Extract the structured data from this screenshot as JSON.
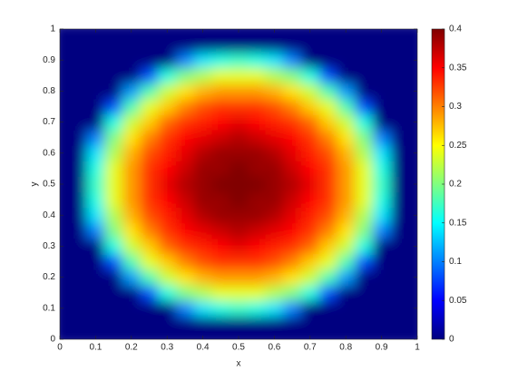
{
  "chart_data": {
    "type": "heatmap",
    "xlabel": "x",
    "ylabel": "y",
    "colormap": "jet",
    "x": [
      0,
      0.05,
      0.1,
      0.15,
      0.2,
      0.25,
      0.3,
      0.35,
      0.4,
      0.45,
      0.5,
      0.55,
      0.6,
      0.65,
      0.7,
      0.75,
      0.8,
      0.85,
      0.9,
      0.95,
      1
    ],
    "y": [
      0,
      0.05,
      0.1,
      0.15,
      0.2,
      0.25,
      0.3,
      0.35,
      0.4,
      0.45,
      0.5,
      0.55,
      0.6,
      0.65,
      0.7,
      0.75,
      0.8,
      0.85,
      0.9,
      0.95,
      1
    ],
    "z": [
      [
        0,
        0,
        0,
        0,
        0,
        0,
        0,
        0,
        0,
        0,
        0,
        0,
        0,
        0,
        0,
        0,
        0,
        0,
        0,
        0,
        0
      ],
      [
        0,
        0,
        0,
        0,
        0,
        0,
        0,
        0,
        0,
        0,
        0,
        0,
        0,
        0,
        0,
        0,
        0,
        0,
        0,
        0,
        0
      ],
      [
        0,
        0,
        0,
        0,
        0,
        0,
        0,
        0.1,
        0.14,
        0.16,
        0.17,
        0.16,
        0.14,
        0.1,
        0,
        0,
        0,
        0,
        0,
        0,
        0
      ],
      [
        0,
        0,
        0,
        0,
        0,
        0.08,
        0.16,
        0.2,
        0.22,
        0.24,
        0.24,
        0.24,
        0.22,
        0.2,
        0.16,
        0.08,
        0,
        0,
        0,
        0,
        0
      ],
      [
        0,
        0,
        0,
        0,
        0.11,
        0.18,
        0.23,
        0.26,
        0.28,
        0.29,
        0.29,
        0.29,
        0.28,
        0.26,
        0.23,
        0.18,
        0.11,
        0,
        0,
        0,
        0
      ],
      [
        0,
        0,
        0,
        0.08,
        0.18,
        0.24,
        0.27,
        0.3,
        0.32,
        0.33,
        0.33,
        0.33,
        0.32,
        0.3,
        0.27,
        0.24,
        0.18,
        0.08,
        0,
        0,
        0
      ],
      [
        0,
        0,
        0,
        0.16,
        0.23,
        0.27,
        0.31,
        0.33,
        0.34,
        0.35,
        0.36,
        0.35,
        0.34,
        0.33,
        0.31,
        0.27,
        0.23,
        0.16,
        0,
        0,
        0
      ],
      [
        0,
        0,
        0.1,
        0.2,
        0.26,
        0.3,
        0.33,
        0.35,
        0.36,
        0.37,
        0.38,
        0.37,
        0.36,
        0.35,
        0.33,
        0.3,
        0.26,
        0.2,
        0.1,
        0,
        0
      ],
      [
        0,
        0,
        0.14,
        0.22,
        0.28,
        0.32,
        0.34,
        0.36,
        0.38,
        0.39,
        0.39,
        0.39,
        0.38,
        0.36,
        0.34,
        0.32,
        0.28,
        0.22,
        0.14,
        0,
        0
      ],
      [
        0,
        0,
        0.16,
        0.24,
        0.29,
        0.33,
        0.35,
        0.37,
        0.39,
        0.39,
        0.4,
        0.39,
        0.39,
        0.37,
        0.35,
        0.33,
        0.29,
        0.24,
        0.16,
        0,
        0
      ],
      [
        0,
        0,
        0.17,
        0.24,
        0.29,
        0.33,
        0.36,
        0.38,
        0.39,
        0.4,
        0.4,
        0.4,
        0.39,
        0.38,
        0.36,
        0.33,
        0.29,
        0.24,
        0.17,
        0,
        0
      ],
      [
        0,
        0,
        0.16,
        0.24,
        0.29,
        0.33,
        0.35,
        0.37,
        0.39,
        0.39,
        0.4,
        0.39,
        0.39,
        0.37,
        0.35,
        0.33,
        0.29,
        0.24,
        0.16,
        0,
        0
      ],
      [
        0,
        0,
        0.14,
        0.22,
        0.28,
        0.32,
        0.34,
        0.36,
        0.38,
        0.39,
        0.39,
        0.39,
        0.38,
        0.36,
        0.34,
        0.32,
        0.28,
        0.22,
        0.14,
        0,
        0
      ],
      [
        0,
        0,
        0.1,
        0.2,
        0.26,
        0.3,
        0.33,
        0.35,
        0.36,
        0.37,
        0.38,
        0.37,
        0.36,
        0.35,
        0.33,
        0.3,
        0.26,
        0.2,
        0.1,
        0,
        0
      ],
      [
        0,
        0,
        0,
        0.16,
        0.23,
        0.27,
        0.31,
        0.33,
        0.34,
        0.35,
        0.36,
        0.35,
        0.34,
        0.33,
        0.31,
        0.27,
        0.23,
        0.16,
        0,
        0,
        0
      ],
      [
        0,
        0,
        0,
        0.08,
        0.18,
        0.24,
        0.27,
        0.3,
        0.32,
        0.33,
        0.33,
        0.33,
        0.32,
        0.3,
        0.27,
        0.24,
        0.18,
        0.08,
        0,
        0,
        0
      ],
      [
        0,
        0,
        0,
        0,
        0.11,
        0.18,
        0.23,
        0.26,
        0.28,
        0.29,
        0.29,
        0.29,
        0.28,
        0.26,
        0.23,
        0.18,
        0.11,
        0,
        0,
        0,
        0
      ],
      [
        0,
        0,
        0,
        0,
        0,
        0.08,
        0.16,
        0.2,
        0.22,
        0.24,
        0.24,
        0.24,
        0.22,
        0.2,
        0.16,
        0.08,
        0,
        0,
        0,
        0,
        0
      ],
      [
        0,
        0,
        0,
        0,
        0,
        0,
        0,
        0.1,
        0.14,
        0.16,
        0.17,
        0.16,
        0.14,
        0.1,
        0,
        0,
        0,
        0,
        0,
        0,
        0
      ],
      [
        0,
        0,
        0,
        0,
        0,
        0,
        0,
        0,
        0,
        0,
        0,
        0,
        0,
        0,
        0,
        0,
        0,
        0,
        0,
        0,
        0
      ],
      [
        0,
        0,
        0,
        0,
        0,
        0,
        0,
        0,
        0,
        0,
        0,
        0,
        0,
        0,
        0,
        0,
        0,
        0,
        0,
        0,
        0
      ]
    ],
    "xlim": [
      0,
      1
    ],
    "ylim": [
      0,
      1
    ],
    "xticks": [
      0,
      0.1,
      0.2,
      0.3,
      0.4,
      0.5,
      0.6,
      0.7,
      0.8,
      0.9,
      1
    ],
    "yticks": [
      0,
      0.1,
      0.2,
      0.3,
      0.4,
      0.5,
      0.6,
      0.7,
      0.8,
      0.9,
      1
    ],
    "clim": [
      0,
      0.4
    ],
    "cticks": [
      0,
      0.05,
      0.1,
      0.15,
      0.2,
      0.25,
      0.3,
      0.35,
      0.4
    ]
  }
}
